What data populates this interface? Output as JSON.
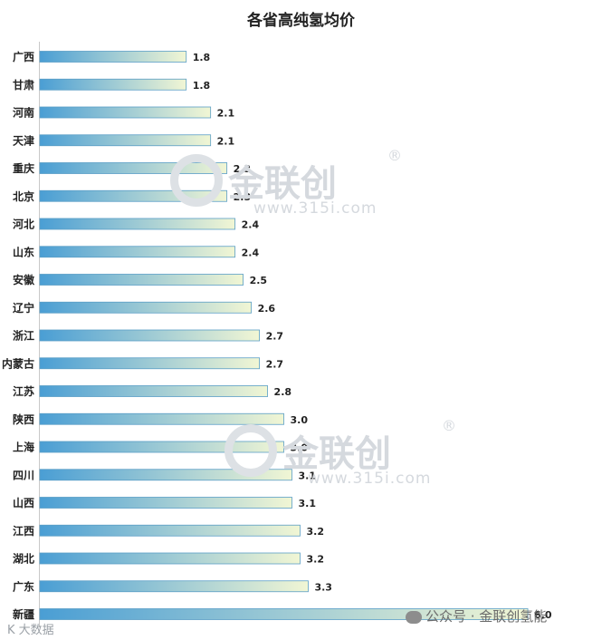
{
  "chart_data": {
    "type": "bar",
    "orientation": "horizontal",
    "title": "各省高纯氢均价",
    "categories": [
      "广西",
      "甘肃",
      "河南",
      "天津",
      "重庆",
      "北京",
      "河北",
      "山东",
      "安徽",
      "辽宁",
      "浙江",
      "内蒙古",
      "江苏",
      "陕西",
      "上海",
      "四川",
      "山西",
      "江西",
      "湖北",
      "广东",
      "新疆"
    ],
    "values": [
      1.8,
      1.8,
      2.1,
      2.1,
      2.3,
      2.3,
      2.4,
      2.4,
      2.5,
      2.6,
      2.7,
      2.7,
      2.8,
      3.0,
      3.0,
      3.1,
      3.1,
      3.2,
      3.2,
      3.3,
      6.0
    ],
    "value_labels": [
      "1.8",
      "1.8",
      "2.1",
      "2.1",
      "2.3",
      "2.3",
      "2.4",
      "2.4",
      "2.5",
      "2.6",
      "2.7",
      "2.7",
      "2.8",
      "3.0",
      "3.0",
      "3.1",
      "3.1",
      "3.2",
      "3.2",
      "3.3",
      "6.0"
    ],
    "xlim": [
      0,
      6.3
    ],
    "grid": false,
    "colors": {
      "bar_start": "#4a9ed4",
      "bar_end": "#f1f6d4",
      "bar_border": "#5a9ec6"
    }
  },
  "watermark": {
    "name": "金联创",
    "reg": "®",
    "url": "www.315i.com"
  },
  "footer": {
    "account": "公众号 · 金联创氢能",
    "left_text": "K  大数据"
  }
}
